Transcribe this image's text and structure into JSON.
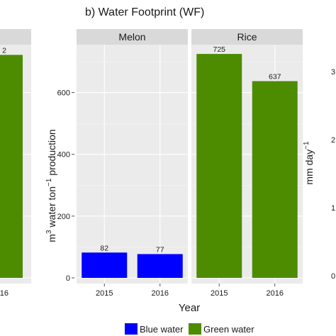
{
  "chart_data": {
    "type": "bar",
    "title": "b) Water Footprint (WF)",
    "xlabel": "Year",
    "ylabel_main": "m",
    "ylabel_sup": "3",
    "ylabel_mid": " water ton",
    "ylabel_sup2": "−1",
    "ylabel_tail": " production",
    "ylim": [
      0,
      760
    ],
    "yticks": [
      "0",
      "200",
      "400",
      "600"
    ],
    "grid": true,
    "legend_position": "bottom",
    "panels": [
      {
        "name": "Melon",
        "categories": [
          "2015",
          "2016"
        ],
        "series": [
          {
            "name": "Blue water",
            "values": [
              82,
              77
            ],
            "labels": [
              "82",
              "77"
            ]
          }
        ],
        "colors": [
          "#0000ff",
          "#0000ff"
        ]
      },
      {
        "name": "Rice",
        "categories": [
          "2015",
          "2016"
        ],
        "series": [
          {
            "name": "Green water",
            "values": [
              725,
              637
            ],
            "labels": [
              "725",
              "637"
            ]
          }
        ],
        "colors": [
          "#4d8c00",
          "#4d8c00"
        ]
      }
    ],
    "legend": [
      {
        "label": "Blue water",
        "color": "#0000ff"
      },
      {
        "label": "Green water",
        "color": "#4d8c00"
      }
    ],
    "left_fragment": {
      "value": 722,
      "label_fragment": "2",
      "tick_fragment": "16",
      "color": "#4d8c00"
    },
    "right_fragment": {
      "ylabel": "mm day",
      "ylabel_sup": "−1",
      "ticks": [
        "0",
        "1",
        "2",
        "3"
      ]
    }
  }
}
